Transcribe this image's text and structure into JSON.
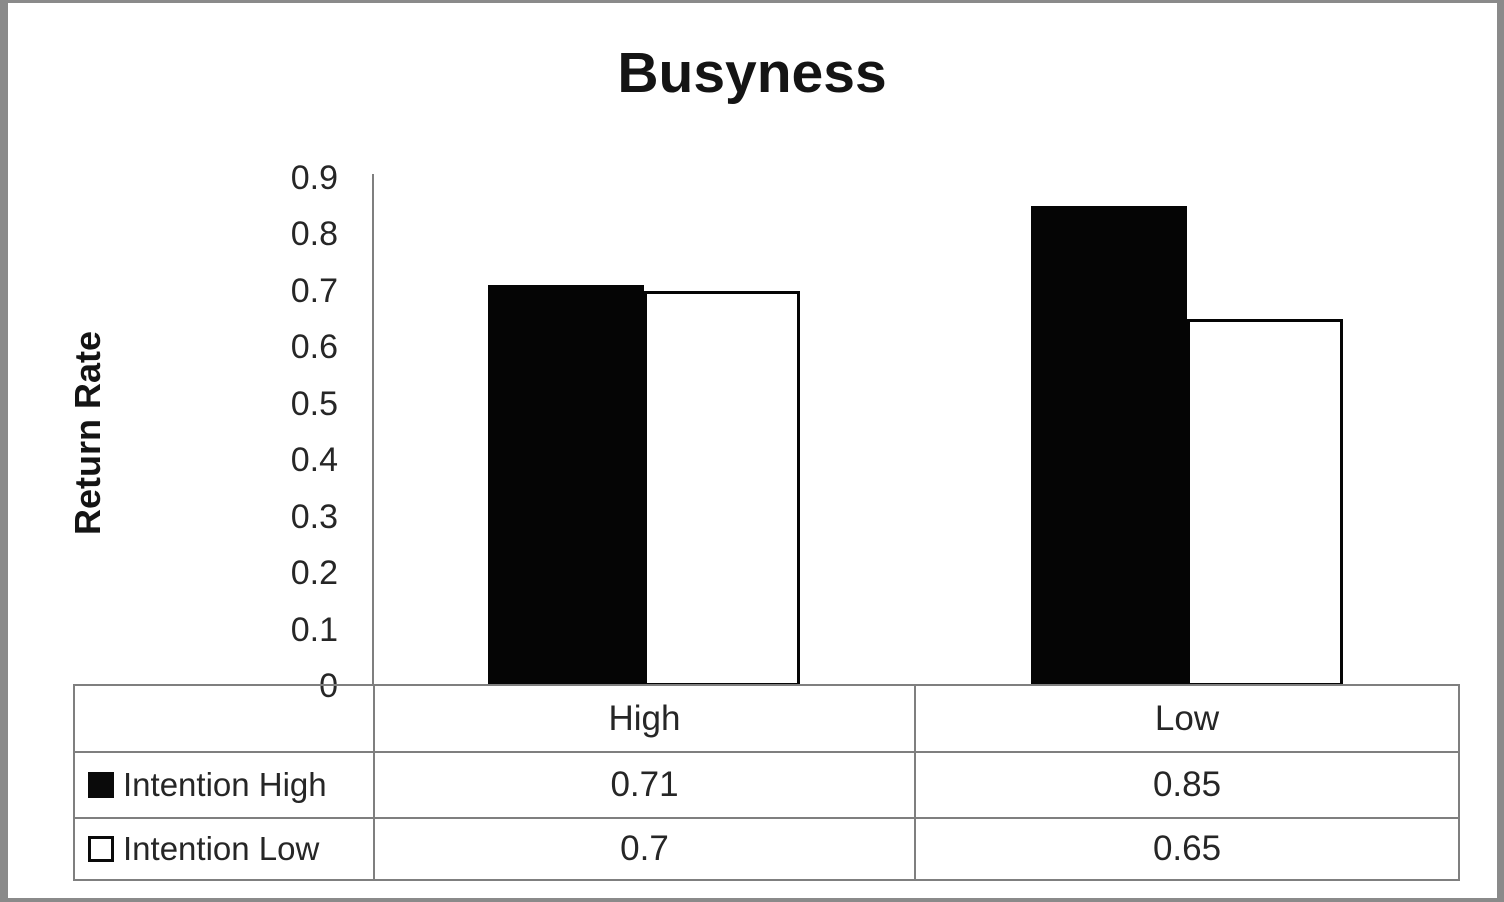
{
  "chart_data": {
    "type": "bar",
    "title": "Busyness",
    "xlabel": "",
    "ylabel": "Return Rate",
    "categories": [
      "High",
      "Low"
    ],
    "series": [
      {
        "name": "Intention High",
        "swatch": "filled",
        "color": "#000000",
        "values": [
          0.71,
          0.85
        ]
      },
      {
        "name": "Intention Low",
        "swatch": "open",
        "color": "#ffffff",
        "values": [
          0.7,
          0.65
        ]
      }
    ],
    "ylim": [
      0,
      0.9
    ],
    "yticks": [
      0,
      0.1,
      0.2,
      0.3,
      0.4,
      0.5,
      0.6,
      0.7,
      0.8,
      0.9
    ],
    "grid": false,
    "legend_position": "data-table-left-column",
    "data_table_shown": true
  },
  "table": {
    "column_headers": [
      "High",
      "Low"
    ],
    "rows": [
      {
        "label": "Intention High",
        "display_values": [
          "0.71",
          "0.85"
        ]
      },
      {
        "label": "Intention Low",
        "display_values": [
          "0.7",
          "0.65"
        ]
      }
    ]
  },
  "colors": {
    "bar_fill": "#000000",
    "bar_open_border": "#000000",
    "grid_line": "#7f7f7f",
    "outer_frame": "#8a8a8a",
    "text": "#262626"
  }
}
